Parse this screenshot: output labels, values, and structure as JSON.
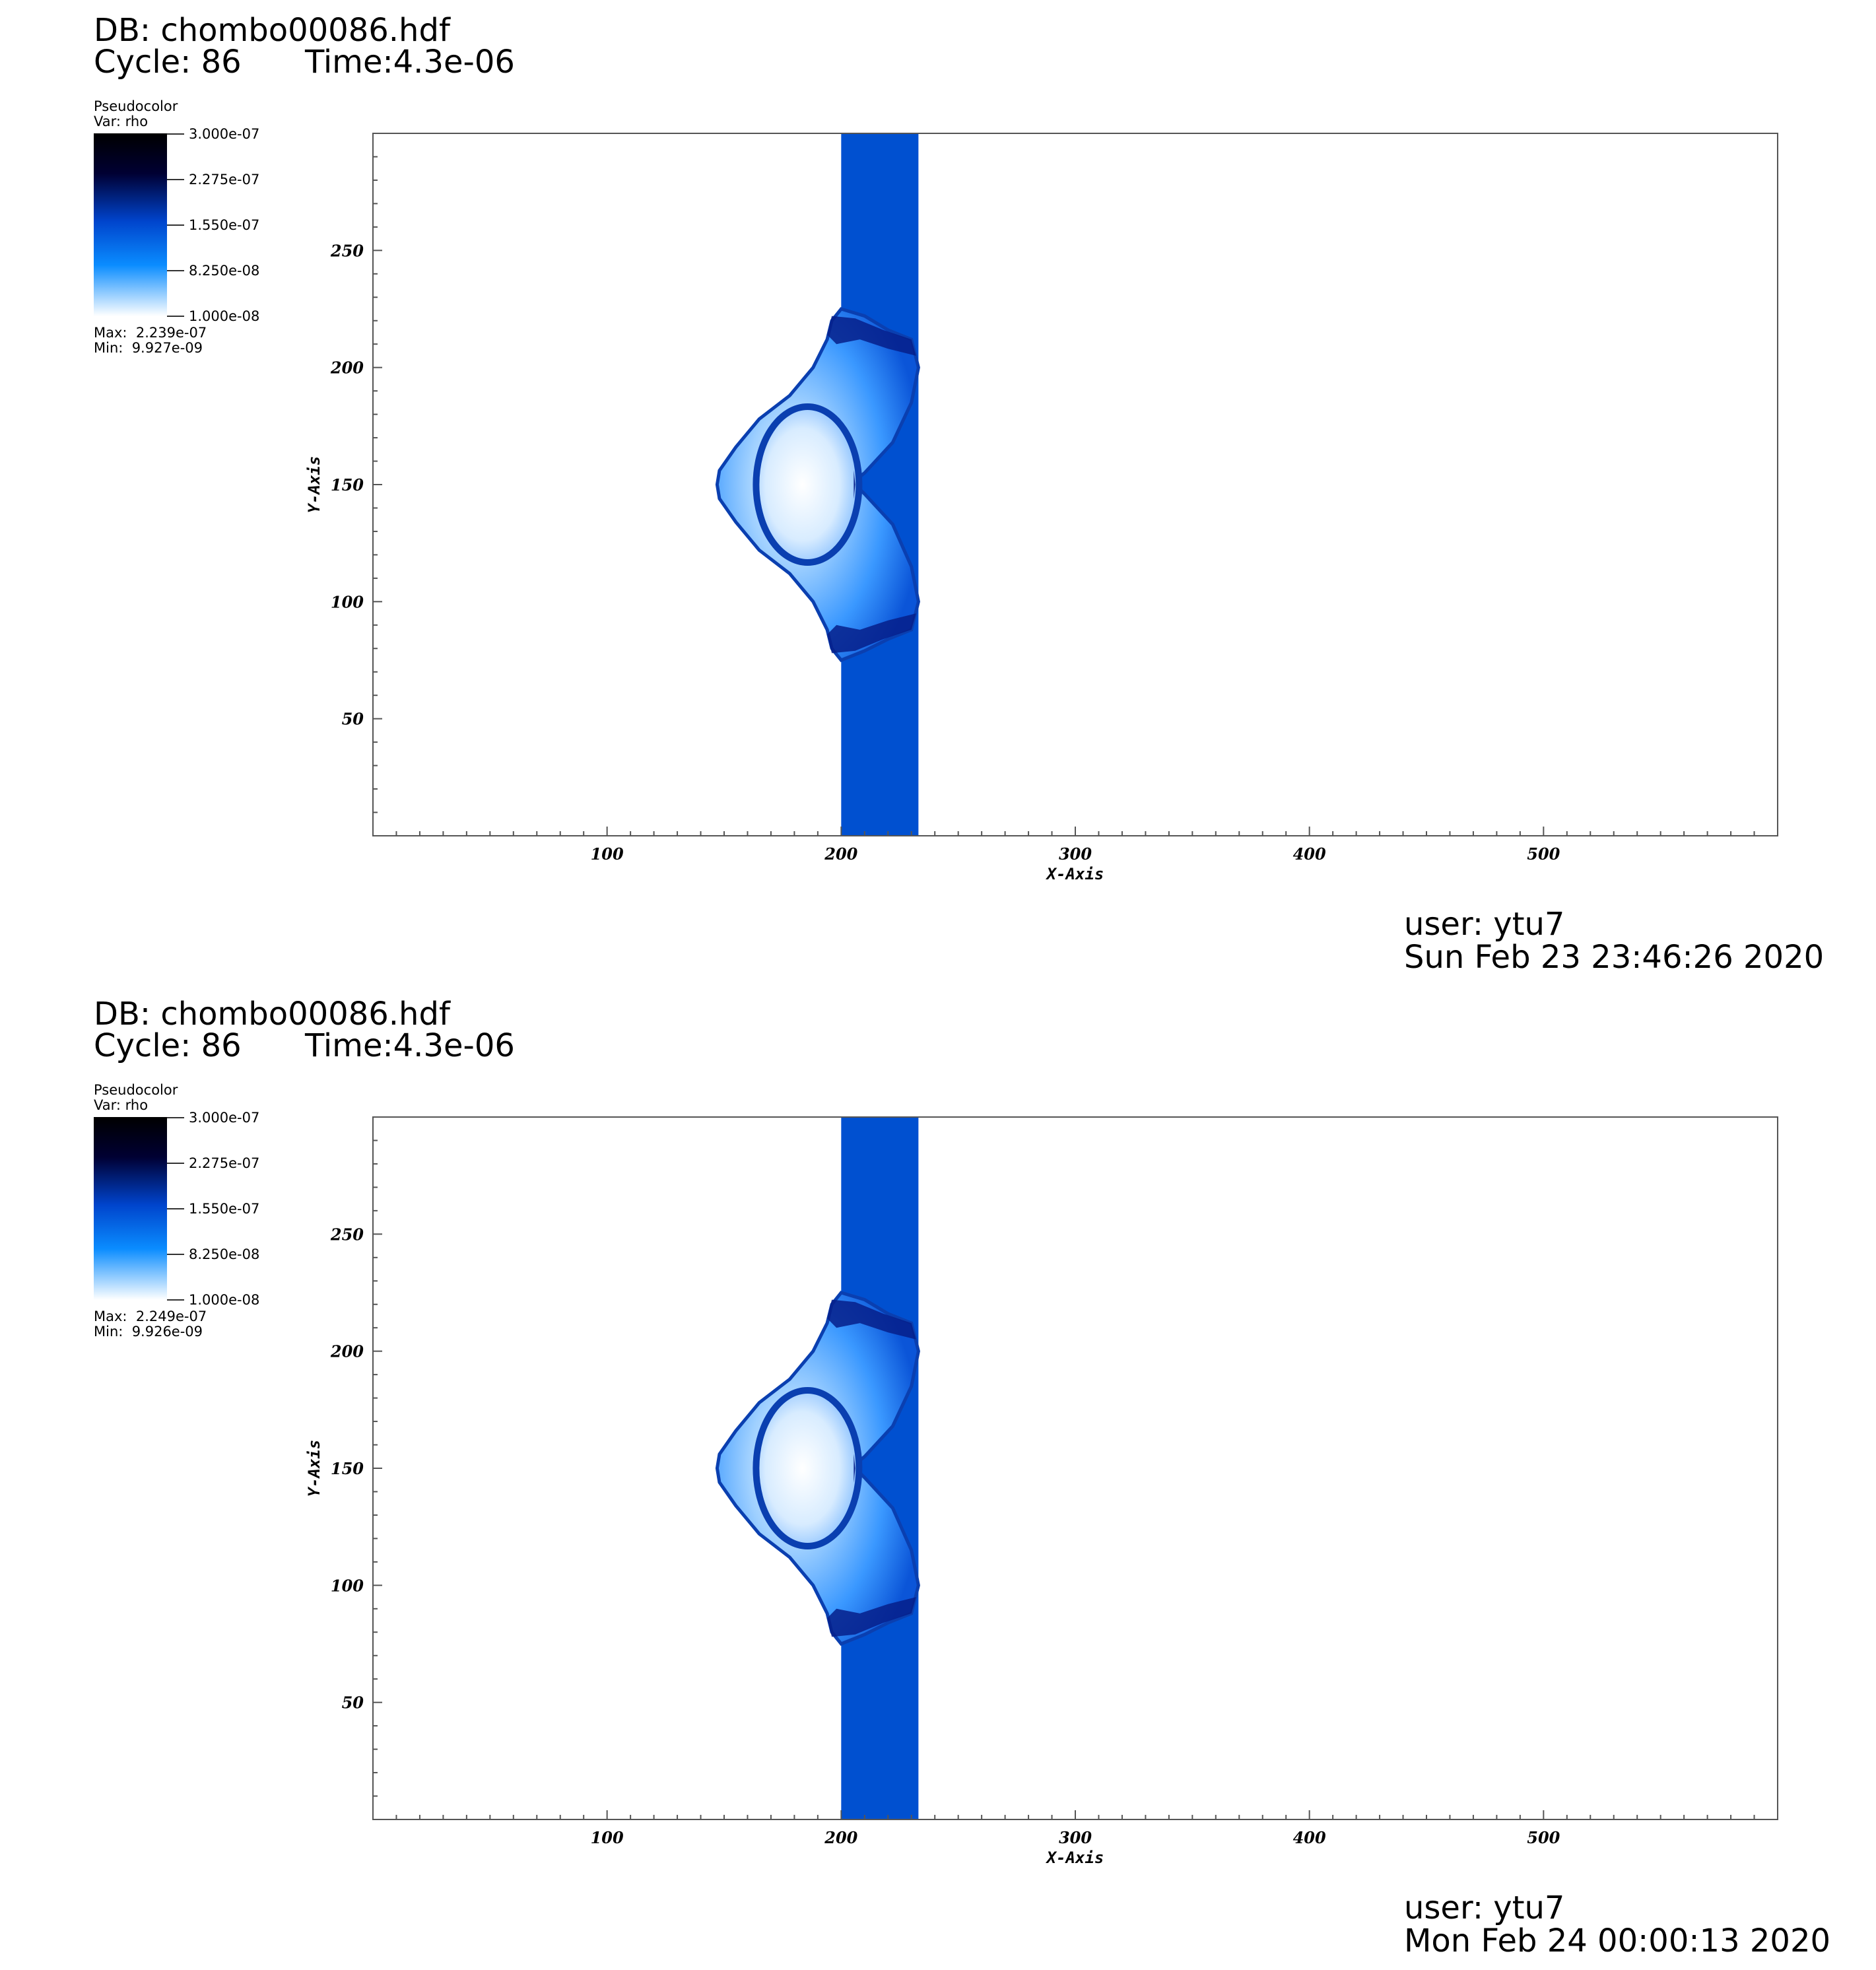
{
  "colorbar": {
    "colors": [
      "#ffffff",
      "#0a8cff",
      "#0044cc",
      "#000033",
      "#000000"
    ],
    "tick_labels": [
      "3.000e-07",
      "2.275e-07",
      "1.550e-07",
      "8.250e-08",
      "1.000e-08"
    ]
  },
  "panels": [
    {
      "db_label": "DB: chombo00086.hdf",
      "cycle_label": "Cycle: 86",
      "time_label": "Time:4.3e-06",
      "legend_title": "Pseudocolor",
      "legend_var": "Var: rho",
      "max_label": "Max:  2.239e-07",
      "min_label": "Min:  9.927e-09",
      "user_label": "user: ytu7",
      "date_label": "Sun Feb 23 23:46:26 2020"
    },
    {
      "db_label": "DB: chombo00086.hdf",
      "cycle_label": "Cycle: 86",
      "time_label": "Time:4.3e-06",
      "legend_title": "Pseudocolor",
      "legend_var": "Var: rho",
      "max_label": "Max:  2.249e-07",
      "min_label": "Min:  9.926e-09",
      "user_label": "user: ytu7",
      "date_label": "Mon Feb 24 00:00:13 2020"
    }
  ],
  "chart_data": [
    {
      "type": "heatmap",
      "variable": "rho",
      "xlabel": "X-Axis",
      "ylabel": "Y-Axis",
      "xlim": [
        0,
        600
      ],
      "ylim": [
        0,
        300
      ],
      "xticks": [
        100,
        200,
        300,
        400,
        500
      ],
      "yticks": [
        50,
        100,
        150,
        200,
        250
      ],
      "colorbar_range": [
        1e-08,
        3e-07
      ],
      "data_max": 2.239e-07,
      "data_min": 9.927e-09,
      "background_color": "#ffffff",
      "slab": {
        "x_range": [
          200,
          233
        ],
        "y_range": [
          0,
          300
        ],
        "color": "#0050d0"
      },
      "shocked_region": {
        "x_range": [
          147,
          233
        ],
        "y_range": [
          75,
          225
        ],
        "center": [
          180,
          150
        ]
      }
    },
    {
      "type": "heatmap",
      "variable": "rho",
      "xlabel": "X-Axis",
      "ylabel": "Y-Axis",
      "xlim": [
        0,
        600
      ],
      "ylim": [
        0,
        300
      ],
      "xticks": [
        100,
        200,
        300,
        400,
        500
      ],
      "yticks": [
        50,
        100,
        150,
        200,
        250
      ],
      "colorbar_range": [
        1e-08,
        3e-07
      ],
      "data_max": 2.249e-07,
      "data_min": 9.926e-09,
      "background_color": "#ffffff",
      "slab": {
        "x_range": [
          200,
          233
        ],
        "y_range": [
          0,
          300
        ],
        "color": "#0050d0"
      },
      "shocked_region": {
        "x_range": [
          147,
          233
        ],
        "y_range": [
          75,
          225
        ],
        "center": [
          180,
          150
        ]
      }
    }
  ]
}
